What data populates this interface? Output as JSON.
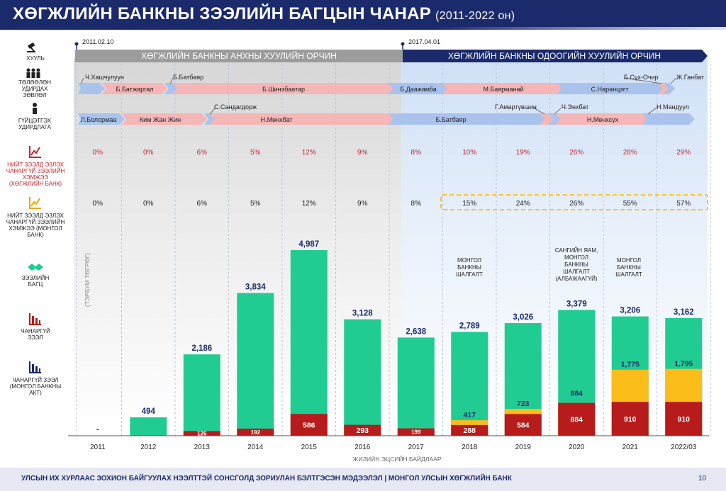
{
  "title": "ХӨГЖЛИЙН БАНКНЫ ЗЭЭЛИЙН БАГЦЫН ЧАНАР",
  "title_years": "(2011-2022 он)",
  "footer": "УЛСЫН ИХ ХУРЛААС ЗОХИОН БАЙГУУЛАХ НЭЭЛТТЭЙ СОНСГОЛД ЗОРИУЛАН БЭЛТГЭСЭН МЭДЭЭЛЭЛ  |  МОНГОЛ УЛСЫН ХӨГЖЛИЙН БАНК",
  "page_number": "10",
  "colors": {
    "navy": "#1b2a6b",
    "green": "#21cc93",
    "yellow": "#fbbd1a",
    "red": "#b81b1b",
    "pink_arrow": "#f5b6b8",
    "blue_arrow": "#a9c3ec",
    "pct_red": "#c0272d"
  },
  "side_labels": {
    "law": "ХУУЛЬ",
    "board": "ТӨЛӨӨЛӨН УДИРДАХ ЗӨВЛӨЛ",
    "exec": "ГҮЙЦЭТГЭХ УДИРДЛАГА",
    "npl_dbm": "НИЙТ ЗЭЭЛД ЭЗЛЭХ ЧАНАРГҮЙ ЗЭЭЛИЙН ХЭМЖЭЭ (ХӨГЖЛИЙН БАНК)",
    "npl_bom": "НИЙТ ЗЭЭЛД ЭЗЛЭХ ЧАНАРГҮЙ ЗЭЭЛИЙН ХЭМЖЭЭ (МОНГОЛ БАНК)",
    "portfolio": "ЗЭЭЛИЙН БАГЦ",
    "npl": "ЧАНАРГҮЙ ЗЭЭЛ",
    "npl_act": "ЧАНАРГҮЙ ЗЭЭЛ (МОНГОЛ БАНКНЫ АКТ)"
  },
  "timeline": {
    "date1": "2011.02.10",
    "date2": "2017.04.01",
    "law_old": "ХӨГЖЛИЙН БАНКНЫ АНХНЫ ХУУЛИЙН ОРЧИН",
    "law_new": "ХӨГЖЛИЙН БАНКНЫ ОДООГИЙН ХУУЛИЙН ОРЧИН",
    "board_top": [
      "Ч.Хашчулуун",
      "Б.Батбаяр",
      "Б.Сүх-Очир",
      "Ж.Ганбат"
    ],
    "board_arrows": [
      "Б.Батжаргал",
      "Б.Шинэбаатар",
      "Б.Даажамба",
      "М.Баярманай",
      "С.Наранцэгт"
    ],
    "exec_top": [
      "С.Сандагдорж",
      "Г.Амартүвшин",
      "Ч.Энхбат",
      "Н.Мандуул"
    ],
    "exec_arrows": [
      "Л.Болормаа",
      "Ким Жан Жин",
      "Н.Мөнхбат",
      "Б.Батбаяр",
      "Н.Мөнхсүх"
    ]
  },
  "annotations": {
    "y_unit": "(ТЭРБУМ ТӨГРӨГ)",
    "x_title": "ЖИЛИЙН ЭЦСИЙН БАЙДЛААР",
    "note_2018": "МОНГОЛ БАНКНЫ ШАЛГАЛТ",
    "note_2020": "САНГИЙН ЯАМ, МОНГОЛ БАНКНЫ ШАЛГАЛТ (АЛБАЖААГҮЙ)",
    "note_2021": "МОНГОЛ БАНКНЫ ШАЛГАЛТ"
  },
  "chart_data": {
    "type": "bar",
    "categories": [
      "2011",
      "2012",
      "2013",
      "2014",
      "2015",
      "2016",
      "2017",
      "2018",
      "2019",
      "2020",
      "2021",
      "2022/03"
    ],
    "total_labels": [
      "-",
      "494",
      "2,186",
      "3,834",
      "4,987",
      "3,128",
      "2,638",
      "2,789",
      "3,026",
      "3,379",
      "3,206",
      "3,162"
    ],
    "total": [
      0,
      494,
      2186,
      3834,
      4987,
      3128,
      2638,
      2789,
      3026,
      3379,
      3206,
      3162
    ],
    "npl": [
      0,
      0,
      126,
      192,
      586,
      293,
      199,
      288,
      584,
      884,
      910,
      910
    ],
    "npl_labels": [
      "",
      "",
      "126",
      "192",
      "586",
      "293",
      "199",
      "288",
      "584",
      "884",
      "910",
      "910"
    ],
    "npl_act": [
      0,
      0,
      0,
      0,
      0,
      0,
      0,
      417,
      723,
      884,
      1775,
      1795
    ],
    "npl_act_labels": [
      "",
      "",
      "",
      "",
      "",
      "",
      "",
      "417",
      "723",
      "884",
      "1,775",
      "1,795"
    ],
    "npl_pct_dbm": [
      "0%",
      "0%",
      "6%",
      "5%",
      "12%",
      "9%",
      "8%",
      "10%",
      "19%",
      "26%",
      "28%",
      "29%"
    ],
    "npl_pct_bom": [
      "0%",
      "0%",
      "6%",
      "5%",
      "12%",
      "9%",
      "8%",
      "15%",
      "24%",
      "26%",
      "55%",
      "57%"
    ],
    "ylim": [
      0,
      5300
    ]
  }
}
